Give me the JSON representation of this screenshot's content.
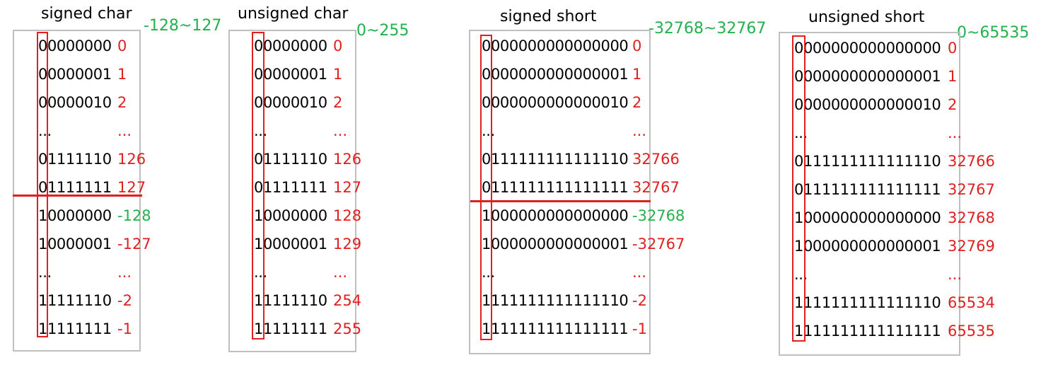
{
  "colors": {
    "positive": "#e02020",
    "negative": "#22b14c",
    "range": "#22b14c",
    "border": "#bfbfbf",
    "highlight": "#e02020"
  },
  "panels": [
    {
      "title": "signed char",
      "range": "-128~127",
      "rows": [
        {
          "bits": "00000000",
          "value": "0",
          "tone": "pos"
        },
        {
          "bits": "00000001",
          "value": "1",
          "tone": "pos"
        },
        {
          "bits": "00000010",
          "value": "2",
          "tone": "pos"
        },
        {
          "bits": "...",
          "value": "...",
          "tone": "pos"
        },
        {
          "bits": "01111110",
          "value": "126",
          "tone": "pos"
        },
        {
          "bits": "01111111",
          "value": "127",
          "tone": "pos"
        },
        {
          "bits": "10000000",
          "value": "-128",
          "tone": "neg"
        },
        {
          "bits": "10000001",
          "value": "-127",
          "tone": "pos"
        },
        {
          "bits": "...",
          "value": "...",
          "tone": "pos"
        },
        {
          "bits": "11111110",
          "value": "-2",
          "tone": "pos"
        },
        {
          "bits": "11111111",
          "value": "-1",
          "tone": "pos"
        }
      ]
    },
    {
      "title": "unsigned char",
      "range": "0~255",
      "rows": [
        {
          "bits": "00000000",
          "value": "0",
          "tone": "pos"
        },
        {
          "bits": "00000001",
          "value": "1",
          "tone": "pos"
        },
        {
          "bits": "00000010",
          "value": "2",
          "tone": "pos"
        },
        {
          "bits": "...",
          "value": "...",
          "tone": "pos"
        },
        {
          "bits": "01111110",
          "value": "126",
          "tone": "pos"
        },
        {
          "bits": "01111111",
          "value": "127",
          "tone": "pos"
        },
        {
          "bits": "10000000",
          "value": "128",
          "tone": "pos"
        },
        {
          "bits": "10000001",
          "value": "129",
          "tone": "pos"
        },
        {
          "bits": "...",
          "value": "...",
          "tone": "pos"
        },
        {
          "bits": "11111110",
          "value": "254",
          "tone": "pos"
        },
        {
          "bits": "11111111",
          "value": "255",
          "tone": "pos"
        }
      ]
    },
    {
      "title": "signed short",
      "range": "-32768~32767",
      "rows": [
        {
          "bits": "0000000000000000",
          "value": "0",
          "tone": "pos"
        },
        {
          "bits": "0000000000000001",
          "value": "1",
          "tone": "pos"
        },
        {
          "bits": "0000000000000010",
          "value": "2",
          "tone": "pos"
        },
        {
          "bits": "...",
          "value": "...",
          "tone": "pos"
        },
        {
          "bits": "0111111111111110",
          "value": "32766",
          "tone": "pos"
        },
        {
          "bits": "0111111111111111",
          "value": "32767",
          "tone": "pos"
        },
        {
          "bits": "1000000000000000",
          "value": "-32768",
          "tone": "neg"
        },
        {
          "bits": "1000000000000001",
          "value": "-32767",
          "tone": "pos"
        },
        {
          "bits": "...",
          "value": "...",
          "tone": "pos"
        },
        {
          "bits": "1111111111111110",
          "value": "-2",
          "tone": "pos"
        },
        {
          "bits": "1111111111111111",
          "value": "-1",
          "tone": "pos"
        }
      ]
    },
    {
      "title": "unsigned short",
      "range": "0~65535",
      "rows": [
        {
          "bits": "0000000000000000",
          "value": "0",
          "tone": "pos"
        },
        {
          "bits": "0000000000000001",
          "value": "1",
          "tone": "pos"
        },
        {
          "bits": "0000000000000010",
          "value": "2",
          "tone": "pos"
        },
        {
          "bits": "...",
          "value": "...",
          "tone": "pos"
        },
        {
          "bits": "0111111111111110",
          "value": "32766",
          "tone": "pos"
        },
        {
          "bits": "0111111111111111",
          "value": "32767",
          "tone": "pos"
        },
        {
          "bits": "1000000000000000",
          "value": "32768",
          "tone": "pos"
        },
        {
          "bits": "1000000000000001",
          "value": "32769",
          "tone": "pos"
        },
        {
          "bits": "...",
          "value": "...",
          "tone": "pos"
        },
        {
          "bits": "1111111111111110",
          "value": "65534",
          "tone": "pos"
        },
        {
          "bits": "1111111111111111",
          "value": "65535",
          "tone": "pos"
        }
      ]
    }
  ]
}
